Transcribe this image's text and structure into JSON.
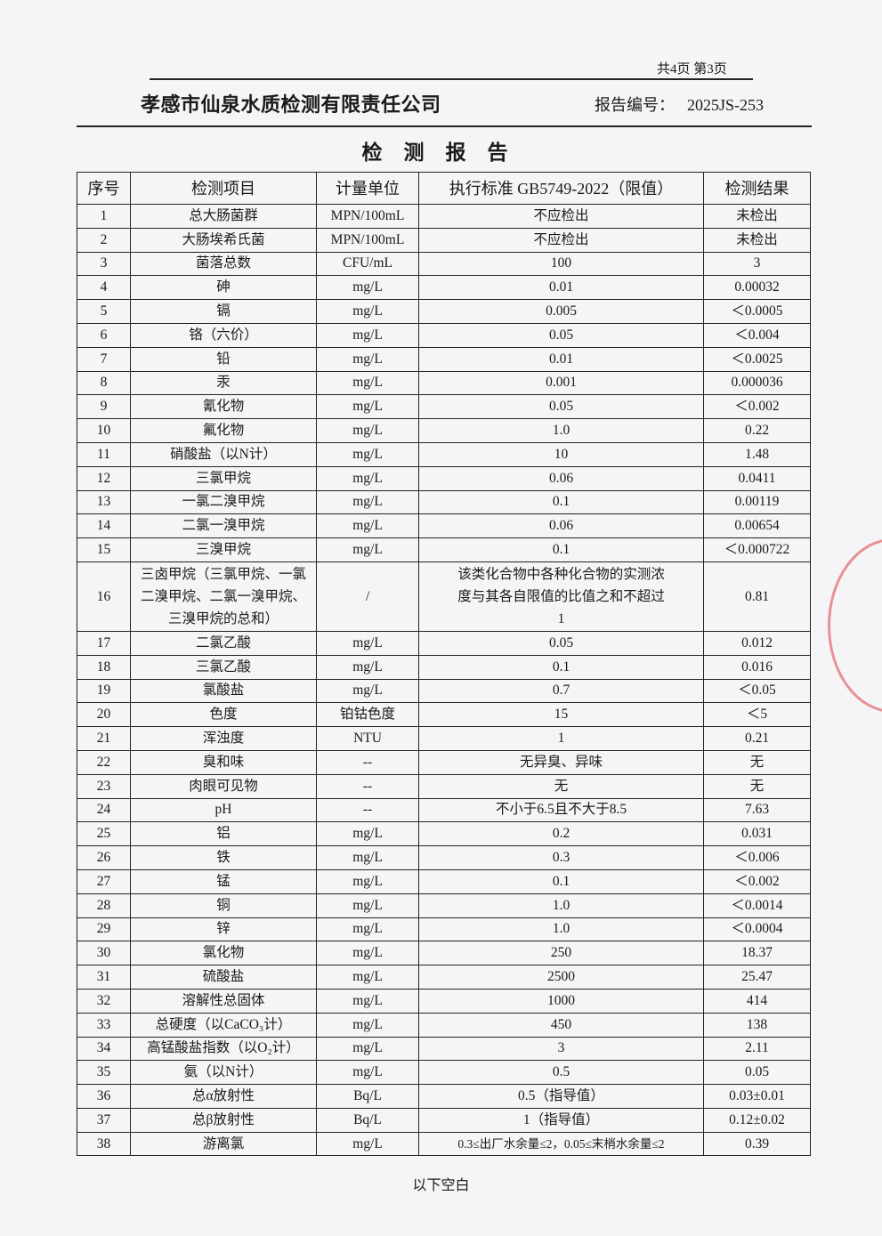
{
  "page_info": "共4页 第3页",
  "company": "孝感市仙泉水质检测有限责任公司",
  "report_no_label": "报告编号：",
  "report_no": "2025JS-253",
  "title": "检测报告",
  "headers": [
    "序号",
    "检测项目",
    "计量单位",
    "执行标准 GB5749-2022（限值）",
    "检测结果"
  ],
  "rows": [
    [
      "1",
      "总大肠菌群",
      "MPN/100mL",
      "不应检出",
      "未检出"
    ],
    [
      "2",
      "大肠埃希氏菌",
      "MPN/100mL",
      "不应检出",
      "未检出"
    ],
    [
      "3",
      "菌落总数",
      "CFU/mL",
      "100",
      "3"
    ],
    [
      "4",
      "砷",
      "mg/L",
      "0.01",
      "0.00032"
    ],
    [
      "5",
      "镉",
      "mg/L",
      "0.005",
      "＜0.0005"
    ],
    [
      "6",
      "铬（六价）",
      "mg/L",
      "0.05",
      "＜0.004"
    ],
    [
      "7",
      "铅",
      "mg/L",
      "0.01",
      "＜0.0025"
    ],
    [
      "8",
      "汞",
      "mg/L",
      "0.001",
      "0.000036"
    ],
    [
      "9",
      "氰化物",
      "mg/L",
      "0.05",
      "＜0.002"
    ],
    [
      "10",
      "氟化物",
      "mg/L",
      "1.0",
      "0.22"
    ],
    [
      "11",
      "硝酸盐（以N计）",
      "mg/L",
      "10",
      "1.48"
    ],
    [
      "12",
      "三氯甲烷",
      "mg/L",
      "0.06",
      "0.0411"
    ],
    [
      "13",
      "一氯二溴甲烷",
      "mg/L",
      "0.1",
      "0.00119"
    ],
    [
      "14",
      "二氯一溴甲烷",
      "mg/L",
      "0.06",
      "0.00654"
    ],
    [
      "15",
      "三溴甲烷",
      "mg/L",
      "0.1",
      "＜0.000722"
    ],
    [
      "16",
      "三卤甲烷（三氯甲烷、一氯二溴甲烷、二氯一溴甲烷、三溴甲烷的总和）",
      "/",
      "该类化合物中各种化合物的实测浓度与其各自限值的比值之和不超过1",
      "0.81"
    ],
    [
      "17",
      "二氯乙酸",
      "mg/L",
      "0.05",
      "0.012"
    ],
    [
      "18",
      "三氯乙酸",
      "mg/L",
      "0.1",
      "0.016"
    ],
    [
      "19",
      "氯酸盐",
      "mg/L",
      "0.7",
      "＜0.05"
    ],
    [
      "20",
      "色度",
      "铂钴色度",
      "15",
      "＜5"
    ],
    [
      "21",
      "浑浊度",
      "NTU",
      "1",
      "0.21"
    ],
    [
      "22",
      "臭和味",
      "--",
      "无异臭、异味",
      "无"
    ],
    [
      "23",
      "肉眼可见物",
      "--",
      "无",
      "无"
    ],
    [
      "24",
      "pH",
      "--",
      "不小于6.5且不大于8.5",
      "7.63"
    ],
    [
      "25",
      "铝",
      "mg/L",
      "0.2",
      "0.031"
    ],
    [
      "26",
      "铁",
      "mg/L",
      "0.3",
      "＜0.006"
    ],
    [
      "27",
      "锰",
      "mg/L",
      "0.1",
      "＜0.002"
    ],
    [
      "28",
      "铜",
      "mg/L",
      "1.0",
      "＜0.0014"
    ],
    [
      "29",
      "锌",
      "mg/L",
      "1.0",
      "＜0.0004"
    ],
    [
      "30",
      "氯化物",
      "mg/L",
      "250",
      "18.37"
    ],
    [
      "31",
      "硫酸盐",
      "mg/L",
      "2500",
      "25.47"
    ],
    [
      "32",
      "溶解性总固体",
      "mg/L",
      "1000",
      "414"
    ],
    [
      "33",
      "总硬度（以CaCO₃计）",
      "mg/L",
      "450",
      "138"
    ],
    [
      "34",
      "高锰酸盐指数（以O₂计）",
      "mg/L",
      "3",
      "2.11"
    ],
    [
      "35",
      "氨（以N计）",
      "mg/L",
      "0.5",
      "0.05"
    ],
    [
      "36",
      "总α放射性",
      "Bq/L",
      "0.5（指导值）",
      "0.03±0.01"
    ],
    [
      "37",
      "总β放射性",
      "Bq/L",
      "1（指导值）",
      "0.12±0.02"
    ],
    [
      "38",
      "游离氯",
      "mg/L",
      "0.3≤出厂水余量≤2，0.05≤末梢水余量≤2",
      "0.39"
    ]
  ],
  "footer": "以下空白",
  "stamp_color": "#dc3c46"
}
